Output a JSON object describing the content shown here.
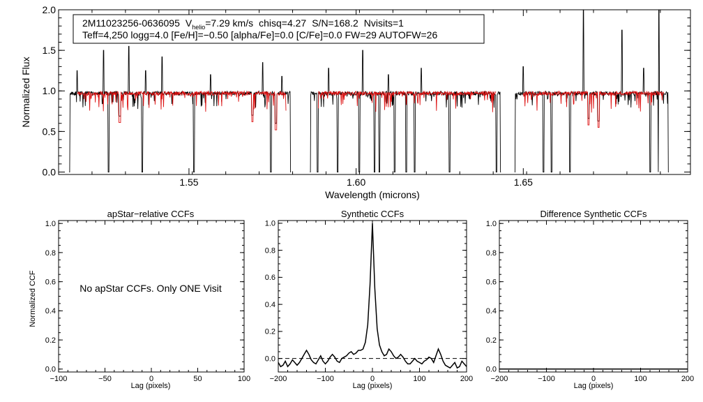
{
  "colors": {
    "observed": "#000000",
    "model": "#dd1111",
    "frame": "#000000"
  },
  "header": {
    "star_id": "2M11023256-0636095",
    "vhelio_prefix": "V",
    "vhelio_sub": "helio",
    "vhelio_value": "=7.29 km/s",
    "chisq": "chisq=4.27",
    "snr": "S/N=168.2",
    "nvisits": "Nvisits=1",
    "line2": "Teff=4,250 logg=4.0 [Fe/H]=−0.50 [alpha/Fe]=0.0 [C/Fe]=0.0 FW=29 AUTOFW=26"
  },
  "chart_data": [
    {
      "id": "spectrum",
      "type": "line",
      "title": "",
      "xlabel": "Wavelength (microns)",
      "ylabel": "Normalized Flux",
      "xlim": [
        1.511,
        1.7
      ],
      "ylim": [
        -0.03,
        2.0
      ],
      "xticks": [
        1.55,
        1.6,
        1.65
      ],
      "xtick_labels": [
        "1.55",
        "1.60",
        "1.65"
      ],
      "yticks": [
        0.0,
        0.5,
        1.0,
        1.5,
        2.0
      ],
      "ytick_labels": [
        "0.0",
        "0.5",
        "1.0",
        "1.5",
        "2.0"
      ],
      "chip_ranges": [
        [
          1.5142,
          1.5805
        ],
        [
          1.5862,
          1.6433
        ],
        [
          1.6474,
          1.6935
        ]
      ],
      "series": [
        {
          "name": "observed spectrum",
          "color": "#000000",
          "continuum": 0.97
        },
        {
          "name": "best-fit model",
          "color": "#dd1111",
          "continuum": 0.97
        }
      ],
      "emission_spikes": [
        {
          "x": 1.5165,
          "y": 1.25
        },
        {
          "x": 1.5245,
          "y": 1.5
        },
        {
          "x": 1.532,
          "y": 1.55
        },
        {
          "x": 1.537,
          "y": 1.25
        },
        {
          "x": 1.542,
          "y": 1.42
        },
        {
          "x": 1.5565,
          "y": 1.2
        },
        {
          "x": 1.572,
          "y": 1.35
        },
        {
          "x": 1.5778,
          "y": 1.18
        },
        {
          "x": 1.5918,
          "y": 1.28
        },
        {
          "x": 1.602,
          "y": 1.5
        },
        {
          "x": 1.6097,
          "y": 1.2
        },
        {
          "x": 1.6195,
          "y": 1.28
        },
        {
          "x": 1.65,
          "y": 1.3
        },
        {
          "x": 1.668,
          "y": 2.0
        },
        {
          "x": 1.6795,
          "y": 1.75
        },
        {
          "x": 1.686,
          "y": 1.28
        },
        {
          "x": 1.6905,
          "y": 2.0
        }
      ],
      "absorption_dips": [
        {
          "x": 1.514,
          "y": 0.0
        },
        {
          "x": 1.526,
          "y": 0.0
        },
        {
          "x": 1.5293,
          "y": 0.61
        },
        {
          "x": 1.536,
          "y": 0.0
        },
        {
          "x": 1.5515,
          "y": 0.0
        },
        {
          "x": 1.569,
          "y": 0.62
        },
        {
          "x": 1.5745,
          "y": 0.0
        },
        {
          "x": 1.576,
          "y": 0.52
        },
        {
          "x": 1.5885,
          "y": 0.0
        },
        {
          "x": 1.5945,
          "y": 0.0
        },
        {
          "x": 1.601,
          "y": 0.0
        },
        {
          "x": 1.6055,
          "y": 0.0
        },
        {
          "x": 1.607,
          "y": 0.0
        },
        {
          "x": 1.6115,
          "y": 0.0
        },
        {
          "x": 1.615,
          "y": 0.0
        },
        {
          "x": 1.6175,
          "y": 0.0
        },
        {
          "x": 1.628,
          "y": 0.0
        },
        {
          "x": 1.642,
          "y": 0.0
        },
        {
          "x": 1.656,
          "y": 0.0
        },
        {
          "x": 1.6585,
          "y": 0.0
        },
        {
          "x": 1.664,
          "y": 0.0
        },
        {
          "x": 1.6695,
          "y": 0.58
        },
        {
          "x": 1.6725,
          "y": 0.55
        },
        {
          "x": 1.688,
          "y": 0.0
        },
        {
          "x": 1.6905,
          "y": 0.0
        }
      ]
    },
    {
      "id": "apstar-ccf",
      "type": "line",
      "title": "apStar−relative CCFs",
      "xlabel": "Lag (pixels)",
      "ylabel": "Normalized CCF",
      "xlim": [
        -100,
        100
      ],
      "ylim": [
        -0.02,
        1.02
      ],
      "xticks": [
        -100,
        -50,
        0,
        50,
        100
      ],
      "xtick_labels": [
        "−100",
        "−50",
        "0",
        "50",
        "100"
      ],
      "yticks": [
        0.0,
        0.2,
        0.4,
        0.6,
        0.8,
        1.0
      ],
      "ytick_labels": [
        "0.0",
        "0.2",
        "0.4",
        "0.6",
        "0.8",
        "1.0"
      ],
      "annotation": "No apStar CCFs.  Only ONE Visit",
      "series": []
    },
    {
      "id": "synthetic-ccf",
      "type": "line",
      "title": "Synthetic CCFs",
      "xlabel": "Lag (pixels)",
      "ylabel": "",
      "xlim": [
        -200,
        200
      ],
      "ylim": [
        -0.1,
        1.02
      ],
      "xticks": [
        -200,
        -100,
        0,
        100,
        200
      ],
      "xtick_labels": [
        "−200",
        "−100",
        "0",
        "100",
        "200"
      ],
      "yticks": [
        0.0,
        0.2,
        0.4,
        0.6,
        0.8,
        1.0
      ],
      "ytick_labels": [
        "0.0",
        "0.2",
        "0.4",
        "0.6",
        "0.8",
        "1.0"
      ],
      "zero_line": 0.0,
      "series": [
        {
          "name": "synthetic CCF",
          "x": [
            -200,
            -195,
            -190,
            -185,
            -180,
            -175,
            -170,
            -165,
            -160,
            -155,
            -150,
            -145,
            -140,
            -135,
            -130,
            -125,
            -120,
            -115,
            -110,
            -105,
            -100,
            -95,
            -90,
            -85,
            -80,
            -75,
            -70,
            -65,
            -60,
            -55,
            -50,
            -45,
            -40,
            -35,
            -30,
            -25,
            -20,
            -15,
            -10,
            -5,
            0,
            5,
            10,
            15,
            20,
            25,
            30,
            35,
            40,
            45,
            50,
            55,
            60,
            65,
            70,
            75,
            80,
            85,
            90,
            95,
            100,
            105,
            110,
            115,
            120,
            125,
            130,
            135,
            140,
            145,
            150,
            155,
            160,
            165,
            170,
            175,
            180,
            185,
            190,
            195,
            200
          ],
          "y": [
            -0.03,
            -0.06,
            -0.05,
            -0.02,
            -0.06,
            -0.04,
            -0.01,
            -0.03,
            -0.05,
            -0.03,
            0.0,
            0.03,
            0.06,
            0.03,
            -0.01,
            -0.03,
            -0.04,
            -0.01,
            0.02,
            -0.02,
            -0.04,
            -0.02,
            0.01,
            0.03,
            0.01,
            -0.02,
            -0.03,
            0.0,
            0.01,
            0.02,
            0.04,
            0.05,
            0.03,
            0.04,
            0.06,
            0.06,
            0.07,
            0.12,
            0.25,
            0.55,
            1.0,
            0.52,
            0.22,
            0.1,
            0.05,
            0.02,
            0.03,
            0.07,
            0.05,
            0.02,
            0.0,
            0.01,
            0.03,
            0.01,
            -0.02,
            -0.04,
            -0.04,
            -0.02,
            0.0,
            -0.02,
            -0.03,
            -0.04,
            -0.02,
            -0.01,
            0.01,
            0.0,
            -0.03,
            0.02,
            0.07,
            0.03,
            -0.02,
            -0.05,
            -0.06,
            -0.07,
            -0.05,
            -0.03,
            -0.07,
            -0.06,
            -0.02,
            -0.04,
            -0.06
          ]
        }
      ]
    },
    {
      "id": "difference-ccf",
      "type": "line",
      "title": "Difference Synthetic CCFs",
      "xlabel": "Lag (pixels)",
      "ylabel": "",
      "xlim": [
        -200,
        200
      ],
      "ylim": [
        -0.02,
        1.02
      ],
      "xticks": [
        -200,
        -100,
        0,
        100,
        200
      ],
      "xtick_labels": [
        "−200",
        "−100",
        "0",
        "100",
        "200"
      ],
      "yticks": [
        0.0,
        0.2,
        0.4,
        0.6,
        0.8,
        1.0
      ],
      "ytick_labels": [
        "0.0",
        "0.2",
        "0.4",
        "0.6",
        "0.8",
        "1.0"
      ],
      "series": [
        {
          "name": "difference CCF",
          "x": [
            -200,
            200
          ],
          "y": [
            0.0,
            0.0
          ]
        }
      ]
    }
  ]
}
